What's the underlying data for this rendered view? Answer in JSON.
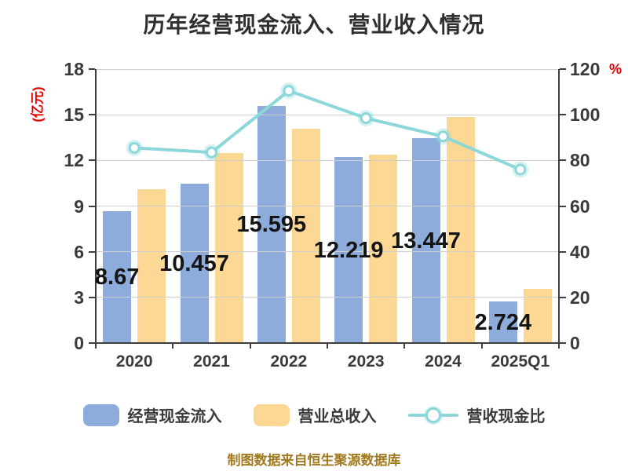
{
  "title": "历年经营现金流入、营业收入情况",
  "footer": "制图数据来自恒生聚源数据库",
  "left_axis": {
    "unit_label": "(亿元)",
    "max": 18,
    "ticks": [
      0,
      3,
      6,
      9,
      12,
      15,
      18
    ]
  },
  "right_axis": {
    "unit_label": "%",
    "max": 120,
    "ticks": [
      0,
      20,
      40,
      60,
      80,
      100,
      120
    ]
  },
  "legend": [
    {
      "label": "经营现金流入",
      "type": "bar",
      "color": "#8EACDB"
    },
    {
      "label": "营业总收入",
      "type": "bar",
      "color": "#FDD794"
    },
    {
      "label": "营收现金比",
      "type": "line",
      "color": "#8BD7D9"
    }
  ],
  "styles": {
    "title_color": "#2F2F2F",
    "tick_text_color": "#3A3A3A",
    "axis_color": "#3F3F3F",
    "grid_color": "#CFCFCF",
    "bar_label_color": "#141414",
    "accent_red": "#E60000",
    "footer_color": "#A2791F",
    "marker_fill": "#FFFFFF"
  },
  "chart_data": {
    "type": "bar",
    "subtype": "grouped-bars-with-line",
    "title": "历年经营现金流入、营业收入情况",
    "categories": [
      "2020",
      "2021",
      "2022",
      "2023",
      "2024",
      "2025Q1"
    ],
    "series": [
      {
        "name": "经营现金流入",
        "type": "bar",
        "axis": "left",
        "color": "#8EACDB",
        "values": [
          8.67,
          10.457,
          15.595,
          12.219,
          13.447,
          2.724
        ],
        "labels": [
          "8.67",
          "10.457",
          "15.595",
          "12.219",
          "13.447",
          "2.724"
        ]
      },
      {
        "name": "营业总收入",
        "type": "bar",
        "axis": "left",
        "color": "#FDD794",
        "values": [
          10.1,
          12.5,
          14.1,
          12.4,
          14.85,
          3.58
        ]
      },
      {
        "name": "营收现金比",
        "type": "line",
        "axis": "right",
        "color": "#8BD7D9",
        "values": [
          85.5,
          83.5,
          110.5,
          98.5,
          90.5,
          76
        ]
      }
    ],
    "ylabel_left": "(亿元)",
    "ylabel_right": "%",
    "ylim_left": [
      0,
      18
    ],
    "ylim_right": [
      0,
      120
    ],
    "grid": true,
    "legend_position": "bottom"
  }
}
